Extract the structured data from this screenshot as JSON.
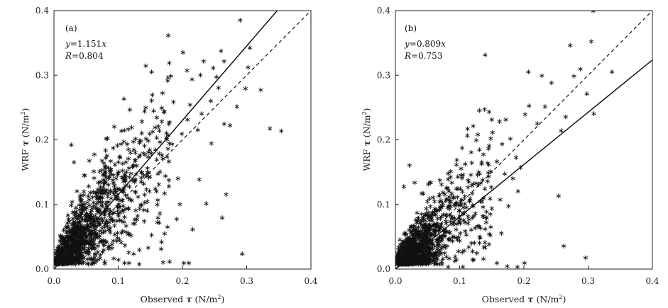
{
  "chart_data": [
    {
      "type": "scatter",
      "panel_label": "(a)",
      "equation": {
        "var_y": "y",
        "eq_text": "=1.151",
        "var_x": "x"
      },
      "correlation": {
        "var": "R",
        "eq_text": "=0.804"
      },
      "xlabel": {
        "prefix": "Observed ",
        "symbol": "τ",
        "unit_open": " (N/m",
        "unit_exp": "2",
        "unit_close": ")"
      },
      "ylabel": {
        "prefix": "WRF ",
        "symbol": "τ",
        "unit_open": " (N/m",
        "unit_exp": "2",
        "unit_close": ")"
      },
      "xlim": [
        0,
        0.4
      ],
      "ylim": [
        0,
        0.4
      ],
      "xticks": [
        "0.0",
        "0.1",
        "0.2",
        "0.3",
        "0.4"
      ],
      "yticks": [
        "0.0",
        "0.1",
        "0.2",
        "0.3",
        "0.4"
      ],
      "marker": "*",
      "fit_line": {
        "slope": 1.151,
        "style": "solid"
      },
      "one_to_one_line": {
        "slope": 1.0,
        "style": "dashed"
      },
      "points_note": "dense cloud; representative outliers listed",
      "points": [
        [
          0.29,
          0.386
        ],
        [
          0.305,
          0.343
        ],
        [
          0.302,
          0.313
        ],
        [
          0.298,
          0.28
        ],
        [
          0.336,
          0.218
        ],
        [
          0.354,
          0.214
        ],
        [
          0.293,
          0.024
        ],
        [
          0.26,
          0.338
        ],
        [
          0.233,
          0.322
        ],
        [
          0.248,
          0.312
        ],
        [
          0.201,
          0.336
        ],
        [
          0.207,
          0.308
        ],
        [
          0.152,
          0.306
        ],
        [
          0.182,
          0.299
        ],
        [
          0.215,
          0.294
        ],
        [
          0.265,
          0.322
        ],
        [
          0.253,
          0.298
        ],
        [
          0.265,
          0.225
        ],
        [
          0.245,
          0.195
        ],
        [
          0.23,
          0.241
        ],
        [
          0.212,
          0.255
        ],
        [
          0.274,
          0.223
        ],
        [
          0.268,
          0.116
        ],
        [
          0.262,
          0.08
        ],
        [
          0.202,
          0.01
        ],
        [
          0.21,
          0.01
        ],
        [
          0.18,
          0.012
        ],
        [
          0.17,
          0.011
        ],
        [
          0.117,
          0.01
        ],
        [
          0.11,
          0.01
        ],
        [
          0.226,
          0.139
        ],
        [
          0.196,
          0.101
        ],
        [
          0.191,
          0.078
        ],
        [
          0.216,
          0.062
        ],
        [
          0.179,
          0.129
        ],
        [
          0.162,
          0.08
        ],
        [
          0.179,
          0.167
        ],
        [
          0.237,
          0.102
        ],
        [
          0.285,
          0.252
        ],
        [
          0.322,
          0.278
        ],
        [
          0.228,
          0.301
        ],
        [
          0.256,
          0.281
        ],
        [
          0.244,
          0.261
        ],
        [
          0.224,
          0.216
        ],
        [
          0.208,
          0.232
        ],
        [
          0.199,
          0.21
        ],
        [
          0.186,
          0.259
        ],
        [
          0.18,
          0.228
        ],
        [
          0.172,
          0.244
        ],
        [
          0.169,
          0.273
        ],
        [
          0.16,
          0.235
        ],
        [
          0.153,
          0.27
        ],
        [
          0.149,
          0.21
        ],
        [
          0.141,
          0.245
        ],
        [
          0.137,
          0.229
        ],
        [
          0.133,
          0.196
        ],
        [
          0.127,
          0.202
        ],
        [
          0.121,
          0.22
        ],
        [
          0.116,
          0.186
        ],
        [
          0.112,
          0.166
        ],
        [
          0.109,
          0.198
        ],
        [
          0.103,
          0.174
        ],
        [
          0.099,
          0.146
        ],
        [
          0.095,
          0.162
        ],
        [
          0.092,
          0.188
        ],
        [
          0.088,
          0.155
        ],
        [
          0.085,
          0.131
        ],
        [
          0.081,
          0.143
        ],
        [
          0.078,
          0.117
        ],
        [
          0.075,
          0.168
        ],
        [
          0.072,
          0.121
        ],
        [
          0.069,
          0.134
        ],
        [
          0.066,
          0.101
        ],
        [
          0.063,
          0.178
        ],
        [
          0.06,
          0.112
        ],
        [
          0.057,
          0.088
        ],
        [
          0.054,
          0.129
        ],
        [
          0.051,
          0.095
        ],
        [
          0.048,
          0.146
        ],
        [
          0.045,
          0.077
        ],
        [
          0.042,
          0.108
        ],
        [
          0.039,
          0.066
        ],
        [
          0.036,
          0.121
        ],
        [
          0.033,
          0.082
        ],
        [
          0.03,
          0.055
        ],
        [
          0.027,
          0.099
        ],
        [
          0.024,
          0.046
        ],
        [
          0.021,
          0.072
        ],
        [
          0.018,
          0.035
        ],
        [
          0.015,
          0.061
        ],
        [
          0.012,
          0.028
        ],
        [
          0.01,
          0.044
        ],
        [
          0.008,
          0.017
        ],
        [
          0.006,
          0.033
        ],
        [
          0.005,
          0.012
        ],
        [
          0.004,
          0.025
        ],
        [
          0.027,
          0.193
        ],
        [
          0.055,
          0.168
        ],
        [
          0.062,
          0.152
        ],
        [
          0.031,
          0.166
        ],
        [
          0.081,
          0.202
        ],
        [
          0.094,
          0.221
        ],
        [
          0.105,
          0.214
        ],
        [
          0.118,
          0.247
        ],
        [
          0.127,
          0.169
        ],
        [
          0.136,
          0.142
        ],
        [
          0.144,
          0.124
        ],
        [
          0.158,
          0.185
        ],
        [
          0.165,
          0.151
        ],
        [
          0.172,
          0.118
        ],
        [
          0.184,
          0.194
        ],
        [
          0.193,
          0.141
        ],
        [
          0.14,
          0.092
        ],
        [
          0.126,
          0.071
        ],
        [
          0.112,
          0.058
        ],
        [
          0.098,
          0.044
        ],
        [
          0.085,
          0.032
        ],
        [
          0.072,
          0.022
        ],
        [
          0.059,
          0.015
        ],
        [
          0.046,
          0.011
        ],
        [
          0.152,
          0.053
        ],
        [
          0.133,
          0.03
        ],
        [
          0.093,
          0.017
        ],
        [
          0.079,
          0.012
        ],
        [
          0.06,
          0.01
        ],
        [
          0.04,
          0.01
        ]
      ]
    },
    {
      "type": "scatter",
      "panel_label": "(b)",
      "equation": {
        "var_y": "y",
        "eq_text": "=0.809",
        "var_x": "x"
      },
      "correlation": {
        "var": "R",
        "eq_text": "=0.753"
      },
      "xlabel": {
        "prefix": "Observed ",
        "symbol": "τ",
        "unit_open": " (N/m",
        "unit_exp": "2",
        "unit_close": ")"
      },
      "ylabel": {
        "prefix": "WRF ",
        "symbol": "τ",
        "unit_open": " (N/m",
        "unit_exp": "2",
        "unit_close": ")"
      },
      "xlim": [
        0,
        0.4
      ],
      "ylim": [
        0,
        0.4
      ],
      "xticks": [
        "0.0",
        "0.1",
        "0.2",
        "0.3",
        "0.4"
      ],
      "yticks": [
        "0.0",
        "0.1",
        "0.2",
        "0.3",
        "0.4"
      ],
      "marker": "*",
      "fit_line": {
        "slope": 0.809,
        "style": "solid"
      },
      "one_to_one_line": {
        "slope": 1.0,
        "style": "dashed"
      },
      "points_note": "dense cloud; representative outliers listed",
      "points": [
        [
          0.308,
          0.4
        ],
        [
          0.305,
          0.353
        ],
        [
          0.337,
          0.306
        ],
        [
          0.272,
          0.347
        ],
        [
          0.288,
          0.31
        ],
        [
          0.298,
          0.272
        ],
        [
          0.309,
          0.241
        ],
        [
          0.265,
          0.236
        ],
        [
          0.278,
          0.299
        ],
        [
          0.258,
          0.215
        ],
        [
          0.254,
          0.114
        ],
        [
          0.262,
          0.036
        ],
        [
          0.296,
          0.018
        ],
        [
          0.207,
          0.306
        ],
        [
          0.228,
          0.3
        ],
        [
          0.243,
          0.289
        ],
        [
          0.233,
          0.252
        ],
        [
          0.221,
          0.226
        ],
        [
          0.208,
          0.253
        ],
        [
          0.202,
          0.24
        ],
        [
          0.195,
          0.158
        ],
        [
          0.188,
          0.173
        ],
        [
          0.179,
          0.202
        ],
        [
          0.172,
          0.232
        ],
        [
          0.166,
          0.194
        ],
        [
          0.158,
          0.167
        ],
        [
          0.151,
          0.212
        ],
        [
          0.145,
          0.187
        ],
        [
          0.137,
          0.178
        ],
        [
          0.131,
          0.148
        ],
        [
          0.126,
          0.2
        ],
        [
          0.119,
          0.165
        ],
        [
          0.113,
          0.138
        ],
        [
          0.108,
          0.113
        ],
        [
          0.102,
          0.156
        ],
        [
          0.097,
          0.125
        ],
        [
          0.093,
          0.099
        ],
        [
          0.088,
          0.134
        ],
        [
          0.083,
          0.108
        ],
        [
          0.079,
          0.085
        ],
        [
          0.074,
          0.119
        ],
        [
          0.069,
          0.092
        ],
        [
          0.065,
          0.072
        ],
        [
          0.061,
          0.105
        ],
        [
          0.056,
          0.081
        ],
        [
          0.052,
          0.062
        ],
        [
          0.048,
          0.094
        ],
        [
          0.044,
          0.068
        ],
        [
          0.04,
          0.052
        ],
        [
          0.036,
          0.079
        ],
        [
          0.032,
          0.058
        ],
        [
          0.028,
          0.043
        ],
        [
          0.024,
          0.066
        ],
        [
          0.02,
          0.048
        ],
        [
          0.017,
          0.035
        ],
        [
          0.014,
          0.055
        ],
        [
          0.011,
          0.039
        ],
        [
          0.009,
          0.027
        ],
        [
          0.007,
          0.046
        ],
        [
          0.005,
          0.03
        ],
        [
          0.004,
          0.019
        ],
        [
          0.003,
          0.012
        ],
        [
          0.022,
          0.161
        ],
        [
          0.013,
          0.128
        ],
        [
          0.03,
          0.134
        ],
        [
          0.041,
          0.118
        ],
        [
          0.054,
          0.134
        ],
        [
          0.069,
          0.116
        ],
        [
          0.082,
          0.14
        ],
        [
          0.095,
          0.162
        ],
        [
          0.104,
          0.188
        ],
        [
          0.112,
          0.207
        ],
        [
          0.121,
          0.222
        ],
        [
          0.15,
          0.232
        ],
        [
          0.162,
          0.229
        ],
        [
          0.17,
          0.148
        ],
        [
          0.183,
          0.141
        ],
        [
          0.191,
          0.121
        ],
        [
          0.176,
          0.098
        ],
        [
          0.163,
          0.108
        ],
        [
          0.15,
          0.094
        ],
        [
          0.136,
          0.082
        ],
        [
          0.124,
          0.064
        ],
        [
          0.113,
          0.071
        ],
        [
          0.101,
          0.056
        ],
        [
          0.089,
          0.044
        ],
        [
          0.076,
          0.037
        ],
        [
          0.064,
          0.025
        ],
        [
          0.052,
          0.018
        ],
        [
          0.04,
          0.012
        ],
        [
          0.132,
          0.05
        ],
        [
          0.148,
          0.053
        ],
        [
          0.165,
          0.056
        ],
        [
          0.12,
          0.028
        ],
        [
          0.093,
          0.02
        ],
        [
          0.072,
          0.012
        ],
        [
          0.158,
          0.01
        ],
        [
          0.174,
          0.005
        ],
        [
          0.201,
          0.01
        ],
        [
          0.19,
          0.004
        ],
        [
          0.105,
          0.004
        ],
        [
          0.082,
          0.004
        ]
      ]
    }
  ]
}
